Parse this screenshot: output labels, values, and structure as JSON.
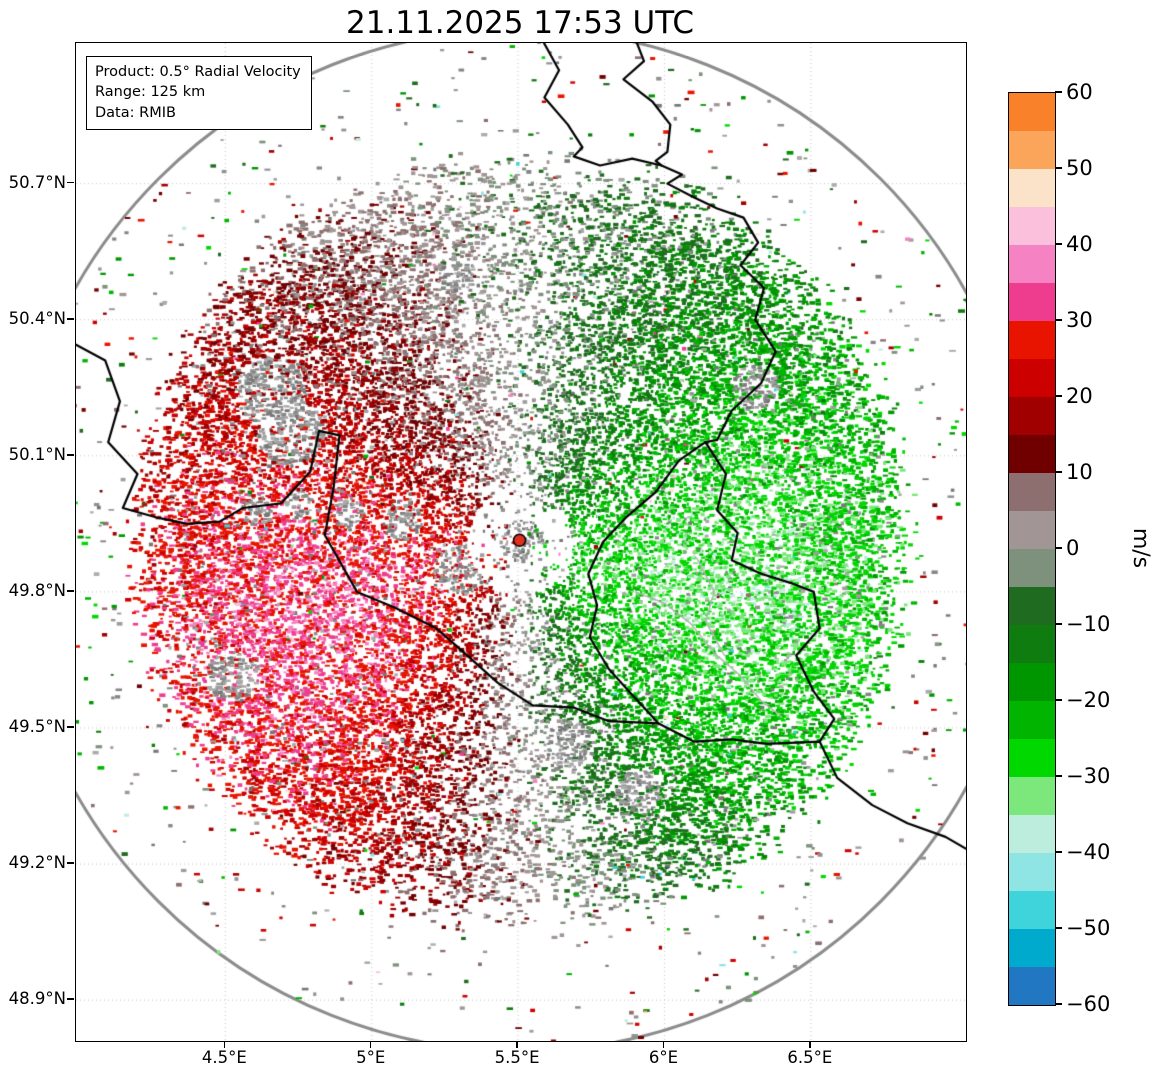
{
  "title": "21.11.2025 17:53 UTC",
  "info_box": {
    "lines": [
      "Product: 0.5° Radial Velocity",
      "Range: 125 km",
      "Data: RMIB"
    ]
  },
  "axes": {
    "lon_range": [
      3.99,
      7.03
    ],
    "lat_range": [
      48.81,
      51.01
    ],
    "lon_ticks": [
      {
        "value": 4.5,
        "label": "4.5°E"
      },
      {
        "value": 5.0,
        "label": "5°E"
      },
      {
        "value": 5.5,
        "label": "5.5°E"
      },
      {
        "value": 6.0,
        "label": "6°E"
      },
      {
        "value": 6.5,
        "label": "6.5°E"
      }
    ],
    "lat_ticks": [
      {
        "value": 50.7,
        "label": "50.7°N"
      },
      {
        "value": 50.4,
        "label": "50.4°N"
      },
      {
        "value": 50.1,
        "label": "50.1°N"
      },
      {
        "value": 49.8,
        "label": "49.8°N"
      },
      {
        "value": 49.5,
        "label": "49.5°N"
      },
      {
        "value": 49.2,
        "label": "49.2°N"
      },
      {
        "value": 48.9,
        "label": "48.9°N"
      }
    ],
    "grid": {
      "color": "#c9c9c9",
      "dash": [
        1,
        3
      ]
    }
  },
  "colorbar": {
    "label": "m/s",
    "min": -60,
    "max": 60,
    "segment_step": 5,
    "ticks": [
      {
        "v": 60,
        "label": "60"
      },
      {
        "v": 50,
        "label": "50"
      },
      {
        "v": 40,
        "label": "40"
      },
      {
        "v": 30,
        "label": "30"
      },
      {
        "v": 20,
        "label": "20"
      },
      {
        "v": 10,
        "label": "10"
      },
      {
        "v": 0,
        "label": "0"
      },
      {
        "v": -10,
        "label": "−10"
      },
      {
        "v": -20,
        "label": "−20"
      },
      {
        "v": -30,
        "label": "−30"
      },
      {
        "v": -40,
        "label": "−40"
      },
      {
        "v": -50,
        "label": "−50"
      },
      {
        "v": -60,
        "label": "−60"
      }
    ]
  },
  "chart_data": {
    "type": "heatmap",
    "title": "21.11.2025 17:53 UTC",
    "product": "0.5° Radial Velocity",
    "data_source": "RMIB",
    "units": "m/s",
    "range_km": 125,
    "site": {
      "lon": 5.505,
      "lat": 49.914
    },
    "lon_range": [
      3.99,
      7.03
    ],
    "lat_range": [
      48.81,
      51.01
    ],
    "value_range": [
      -60,
      60
    ],
    "pattern_summary": "Doppler radial-velocity dipole around the Wideumont radar: positive velocities (red, 10-30 m/s, away from radar) over the west/southwest sector with darkest reds to the northwest; negative velocities (green, -10 to -30 m/s, toward radar) over the east sector; near-zero gray/white band running roughly north-south through the radar; gray ground-clutter cluster at the site; sparse multicolour speckle noise out to the 125 km range ring.",
    "field_model": {
      "seed": 20251121,
      "samples": 72000,
      "v0": 24,
      "asym": 8,
      "noise_sd": 4,
      "bend": 0.18,
      "range": 125,
      "gray_blobs": 12
    },
    "colormap_top_to_bottom": [
      "#f8812a",
      "#fba55b",
      "#fbe3c9",
      "#fbc0dc",
      "#f583c3",
      "#ee3d8f",
      "#e81400",
      "#cd0000",
      "#a00000",
      "#700000",
      "#8d6f6f",
      "#a29595",
      "#7d917d",
      "#1f6b1f",
      "#0e7c0e",
      "#009600",
      "#00b400",
      "#00d800",
      "#7ce87c",
      "#bdeedd",
      "#8fe4e4",
      "#3fd3dc",
      "#00aacd",
      "#2277c3"
    ],
    "gray_shades": [
      "#777777",
      "#858585",
      "#919191",
      "#9e9e9e",
      "#ababab"
    ],
    "range_ring": {
      "color": "#8c8c8c",
      "width": 3
    },
    "site_marker": {
      "fill": "#e03020",
      "edge": "#000000",
      "radius": 6
    },
    "borders": {
      "country_color": "#000000",
      "country_width": 2.2,
      "region_color": "#b3b3b3",
      "region_width": 1.4,
      "countries": [
        [
          [
            5.58,
            51.02
          ],
          [
            5.64,
            50.95
          ],
          [
            5.59,
            50.89
          ],
          [
            5.67,
            50.83
          ],
          [
            5.72,
            50.78
          ],
          [
            5.69,
            50.76
          ],
          [
            5.78,
            50.74
          ],
          [
            5.89,
            50.755
          ],
          [
            5.99,
            50.74
          ]
        ],
        [
          [
            5.9,
            51.02
          ],
          [
            5.93,
            50.97
          ],
          [
            5.86,
            50.93
          ],
          [
            5.96,
            50.88
          ],
          [
            6.02,
            50.83
          ],
          [
            6.01,
            50.77
          ],
          [
            5.97,
            50.75
          ],
          [
            5.99,
            50.74
          ],
          [
            6.06,
            50.72
          ],
          [
            6.01,
            50.7
          ],
          [
            6.1,
            50.67
          ],
          [
            6.18,
            50.645
          ],
          [
            6.27,
            50.625
          ],
          [
            6.32,
            50.57
          ],
          [
            6.26,
            50.52
          ],
          [
            6.34,
            50.47
          ],
          [
            6.31,
            50.4
          ],
          [
            6.38,
            50.33
          ],
          [
            6.33,
            50.26
          ],
          [
            6.23,
            50.2
          ],
          [
            6.18,
            50.135
          ],
          [
            6.14,
            50.13
          ]
        ],
        [
          [
            6.14,
            50.13
          ],
          [
            6.21,
            50.06
          ],
          [
            6.18,
            49.98
          ],
          [
            6.25,
            49.93
          ],
          [
            6.23,
            49.87
          ],
          [
            6.33,
            49.84
          ],
          [
            6.43,
            49.82
          ],
          [
            6.51,
            49.8
          ],
          [
            6.53,
            49.72
          ],
          [
            6.45,
            49.66
          ],
          [
            6.51,
            49.58
          ],
          [
            6.58,
            49.52
          ],
          [
            6.53,
            49.47
          ]
        ],
        [
          [
            6.14,
            50.13
          ],
          [
            6.05,
            50.09
          ],
          [
            5.97,
            50.02
          ],
          [
            5.87,
            49.965
          ],
          [
            5.79,
            49.91
          ],
          [
            5.74,
            49.84
          ],
          [
            5.77,
            49.77
          ],
          [
            5.745,
            49.7
          ],
          [
            5.81,
            49.63
          ],
          [
            5.88,
            49.58
          ],
          [
            5.93,
            49.545
          ],
          [
            5.98,
            49.51
          ]
        ],
        [
          [
            3.99,
            50.345
          ],
          [
            4.09,
            50.31
          ],
          [
            4.14,
            50.22
          ],
          [
            4.1,
            50.13
          ],
          [
            4.2,
            50.06
          ],
          [
            4.15,
            49.985
          ],
          [
            4.26,
            49.965
          ],
          [
            4.37,
            49.95
          ],
          [
            4.48,
            49.955
          ],
          [
            4.56,
            49.985
          ],
          [
            4.69,
            49.995
          ],
          [
            4.79,
            50.065
          ],
          [
            4.82,
            50.155
          ],
          [
            4.89,
            50.145
          ],
          [
            4.87,
            50.03
          ],
          [
            4.84,
            49.925
          ],
          [
            4.95,
            49.8
          ],
          [
            5.08,
            49.765
          ],
          [
            5.22,
            49.72
          ],
          [
            5.3,
            49.675
          ],
          [
            5.43,
            49.6
          ],
          [
            5.55,
            49.55
          ],
          [
            5.69,
            49.545
          ],
          [
            5.81,
            49.515
          ],
          [
            5.98,
            49.51
          ],
          [
            6.1,
            49.47
          ],
          [
            6.23,
            49.475
          ],
          [
            6.35,
            49.465
          ],
          [
            6.53,
            49.47
          ],
          [
            6.59,
            49.39
          ],
          [
            6.71,
            49.33
          ],
          [
            6.83,
            49.29
          ],
          [
            6.96,
            49.26
          ],
          [
            7.04,
            49.23
          ]
        ]
      ],
      "regions": [
        [
          [
            5.9,
            49.8
          ],
          [
            6.0,
            49.775
          ],
          [
            6.09,
            49.73
          ],
          [
            6.17,
            49.665
          ],
          [
            6.26,
            49.615
          ],
          [
            6.33,
            49.56
          ],
          [
            6.4,
            49.525
          ]
        ],
        [
          [
            6.11,
            49.875
          ],
          [
            6.17,
            49.8
          ],
          [
            6.14,
            49.735
          ],
          [
            6.205,
            49.66
          ]
        ]
      ]
    }
  }
}
